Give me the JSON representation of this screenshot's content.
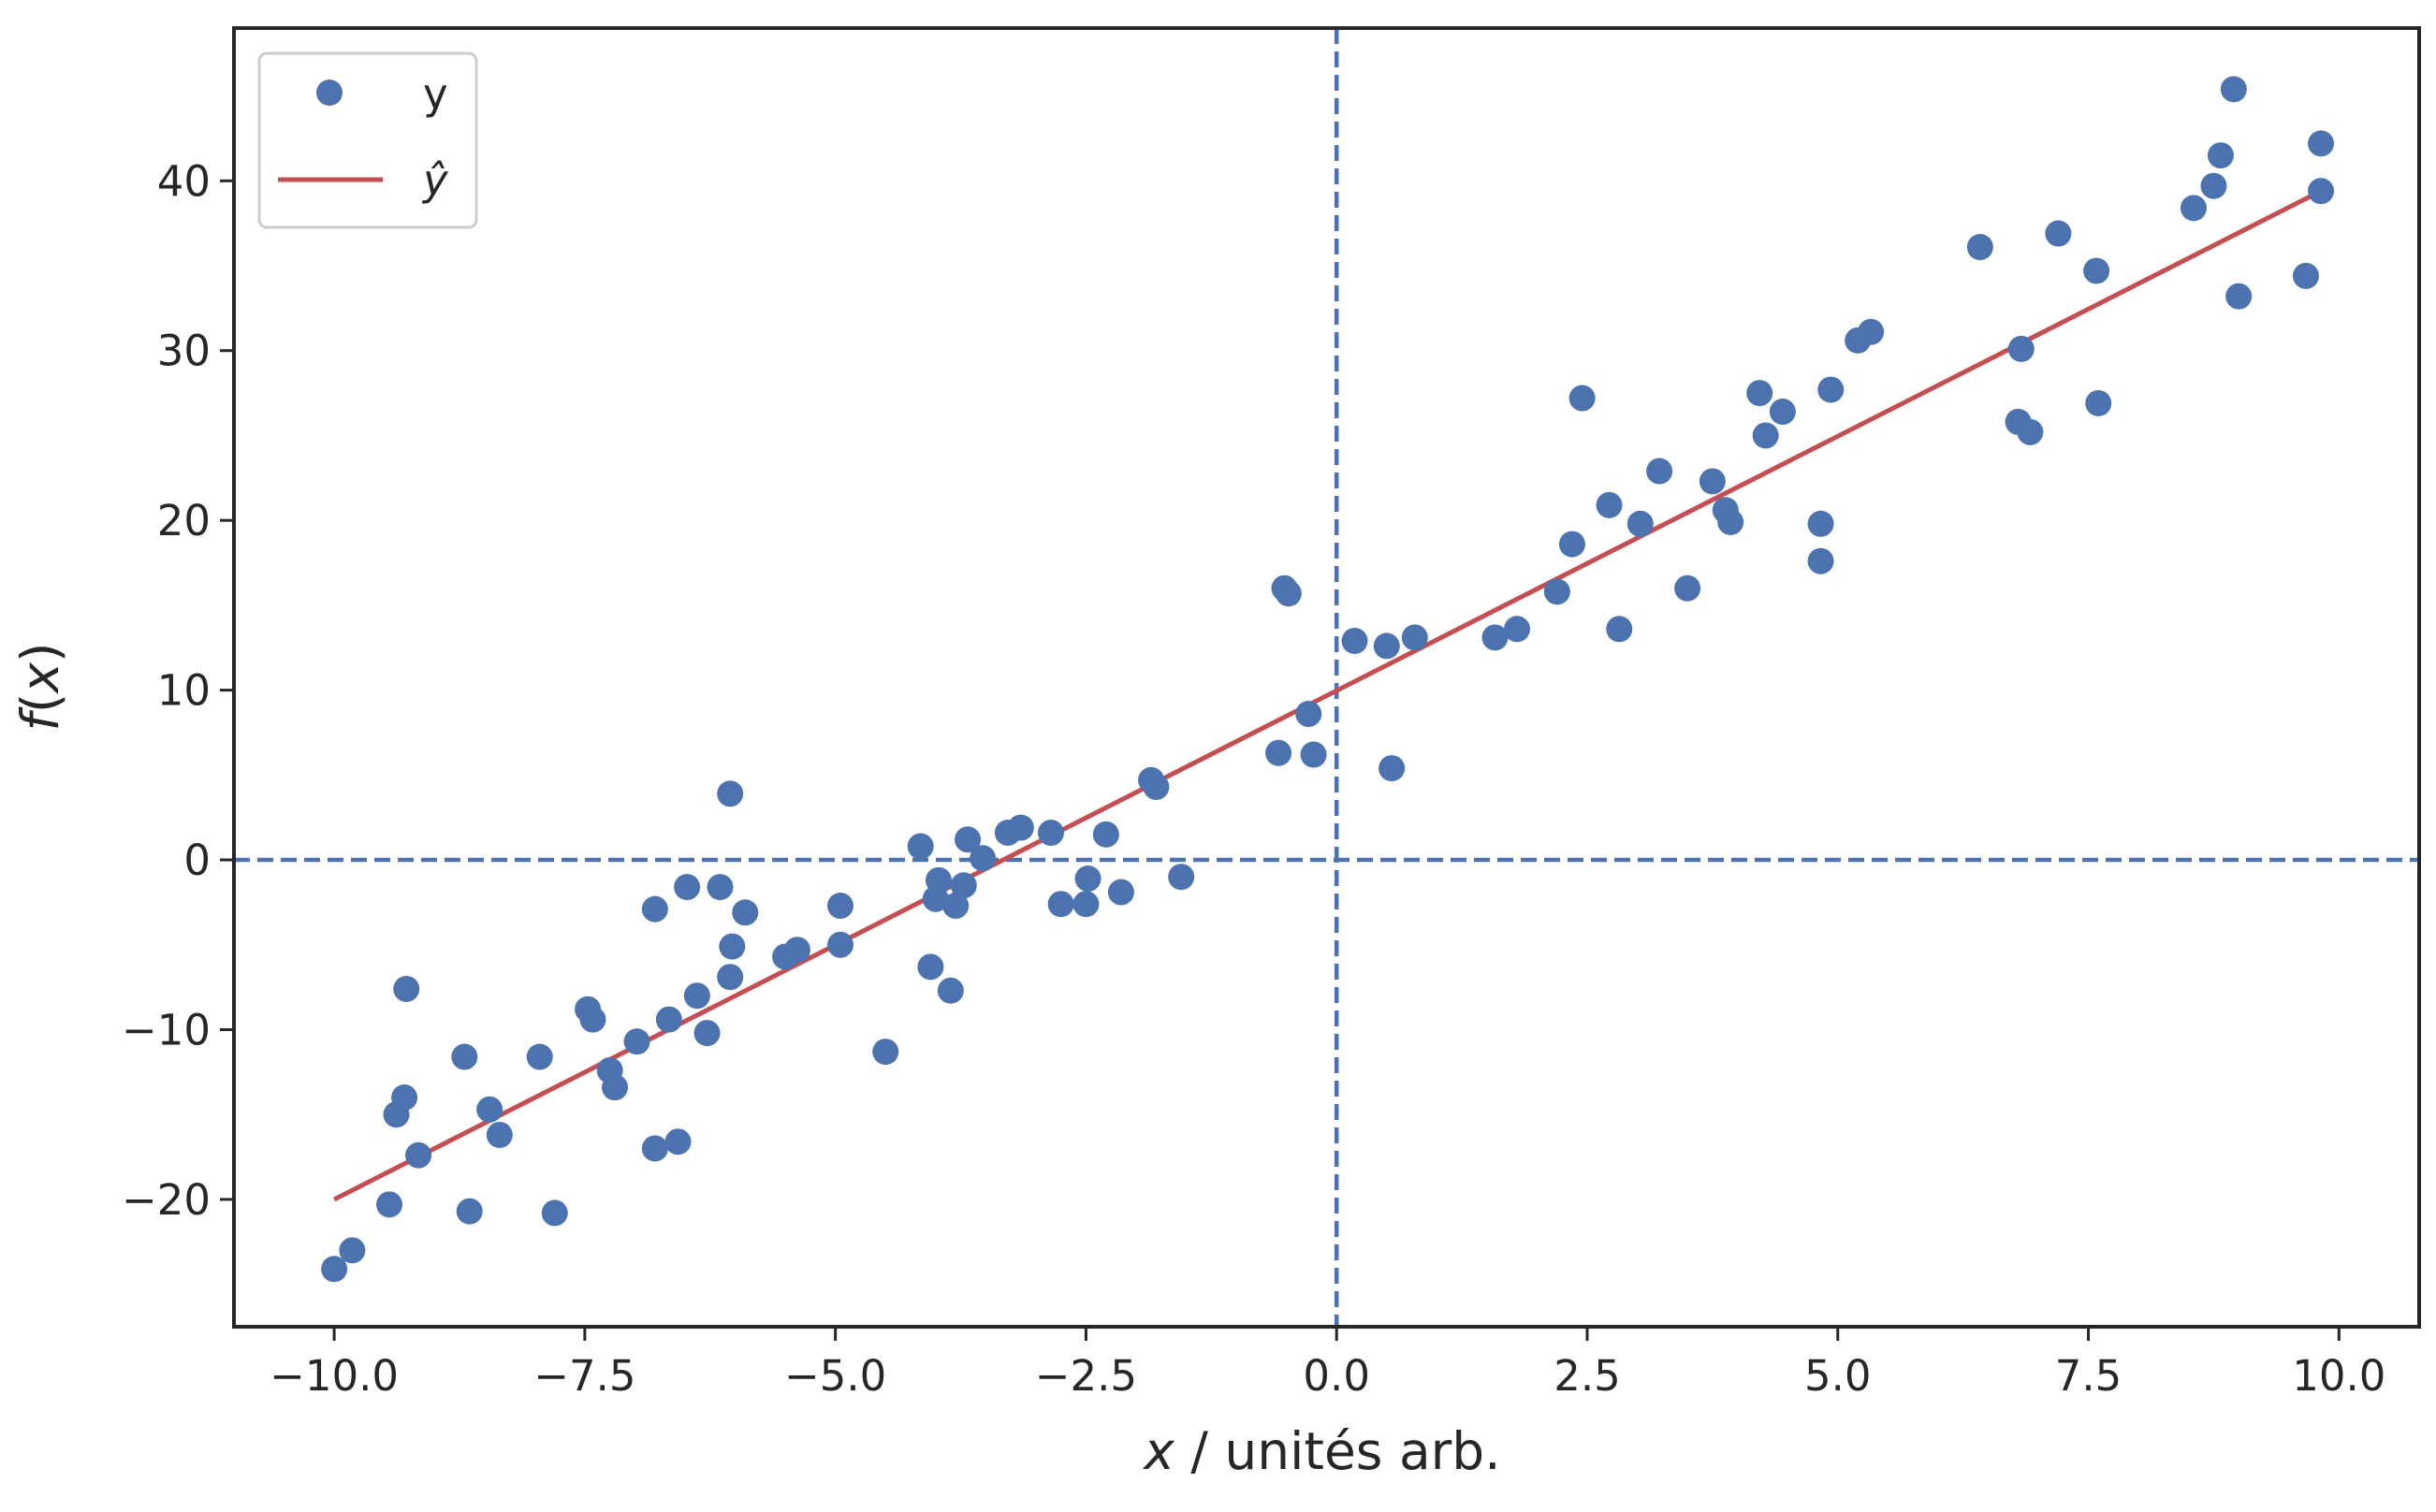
{
  "chart_data": {
    "type": "scatter",
    "xlabel": "x / unités arb.",
    "ylabel": "f(x)",
    "xlim": [
      -11.0,
      10.8
    ],
    "ylim": [
      -27.5,
      49.0
    ],
    "x_ticks": [
      -10.0,
      -7.5,
      -5.0,
      -2.5,
      0.0,
      2.5,
      5.0,
      7.5,
      10.0
    ],
    "x_tick_labels": [
      "−10.0",
      "−7.5",
      "−5.0",
      "−2.5",
      "0.0",
      "2.5",
      "5.0",
      "7.5",
      "10.0"
    ],
    "y_ticks": [
      -20,
      -10,
      0,
      10,
      20,
      30,
      40
    ],
    "y_tick_labels": [
      "−20",
      "−10",
      "0",
      "10",
      "20",
      "30",
      "40"
    ],
    "grid": false,
    "legend": "top-left",
    "reference_lines": {
      "vertical_x": 0,
      "horizontal_y": 0,
      "style": "dashed",
      "color": "#4C72B0"
    },
    "series": [
      {
        "name": "y",
        "kind": "scatter",
        "color": "#4C72B0",
        "points": [
          [
            -10.0,
            -24.1
          ],
          [
            -9.82,
            -23.0
          ],
          [
            -9.45,
            -20.3
          ],
          [
            -9.38,
            -15.0
          ],
          [
            -9.3,
            -14.0
          ],
          [
            -9.28,
            -7.6
          ],
          [
            -9.16,
            -17.4
          ],
          [
            -8.7,
            -11.6
          ],
          [
            -8.65,
            -20.7
          ],
          [
            -8.45,
            -14.7
          ],
          [
            -8.35,
            -16.2
          ],
          [
            -7.95,
            -11.6
          ],
          [
            -7.8,
            -20.8
          ],
          [
            -7.47,
            -8.8
          ],
          [
            -7.42,
            -9.4
          ],
          [
            -7.25,
            -12.4
          ],
          [
            -7.2,
            -13.4
          ],
          [
            -6.98,
            -10.7
          ],
          [
            -6.8,
            -2.9
          ],
          [
            -6.8,
            -17.0
          ],
          [
            -6.66,
            -9.4
          ],
          [
            -6.57,
            -16.6
          ],
          [
            -6.48,
            -1.6
          ],
          [
            -6.38,
            -8.0
          ],
          [
            -6.28,
            -10.2
          ],
          [
            -6.15,
            -1.6
          ],
          [
            -6.05,
            3.9
          ],
          [
            -6.03,
            -5.1
          ],
          [
            -6.05,
            -6.9
          ],
          [
            -5.9,
            -3.1
          ],
          [
            -5.5,
            -5.7
          ],
          [
            -5.38,
            -5.3
          ],
          [
            -4.95,
            -2.7
          ],
          [
            -4.95,
            -5.0
          ],
          [
            -4.5,
            -11.3
          ],
          [
            -4.15,
            0.8
          ],
          [
            -4.05,
            -6.3
          ],
          [
            -4.0,
            -2.3
          ],
          [
            -3.97,
            -1.2
          ],
          [
            -3.85,
            -7.7
          ],
          [
            -3.8,
            -2.7
          ],
          [
            -3.72,
            -1.5
          ],
          [
            -3.68,
            1.2
          ],
          [
            -3.53,
            0.1
          ],
          [
            -3.28,
            1.6
          ],
          [
            -3.15,
            1.9
          ],
          [
            -2.85,
            1.6
          ],
          [
            -2.75,
            -2.6
          ],
          [
            -2.5,
            -2.6
          ],
          [
            -2.48,
            -1.1
          ],
          [
            -2.3,
            1.5
          ],
          [
            -2.15,
            -1.9
          ],
          [
            -1.85,
            4.7
          ],
          [
            -1.8,
            4.3
          ],
          [
            -1.55,
            -1.0
          ],
          [
            -0.58,
            6.3
          ],
          [
            -0.52,
            16.0
          ],
          [
            -0.48,
            15.7
          ],
          [
            -0.28,
            8.6
          ],
          [
            -0.23,
            6.2
          ],
          [
            0.18,
            12.9
          ],
          [
            0.5,
            12.6
          ],
          [
            0.55,
            5.4
          ],
          [
            0.78,
            13.1
          ],
          [
            1.58,
            13.1
          ],
          [
            1.8,
            13.6
          ],
          [
            2.2,
            15.8
          ],
          [
            2.35,
            18.6
          ],
          [
            2.45,
            27.2
          ],
          [
            2.72,
            20.9
          ],
          [
            2.82,
            13.6
          ],
          [
            3.03,
            19.8
          ],
          [
            3.22,
            22.9
          ],
          [
            3.5,
            16.0
          ],
          [
            3.75,
            22.3
          ],
          [
            3.88,
            20.6
          ],
          [
            3.93,
            19.9
          ],
          [
            4.22,
            27.5
          ],
          [
            4.28,
            25.0
          ],
          [
            4.45,
            26.4
          ],
          [
            4.83,
            19.8
          ],
          [
            4.83,
            17.6
          ],
          [
            4.93,
            27.7
          ],
          [
            5.2,
            30.6
          ],
          [
            5.33,
            31.1
          ],
          [
            6.42,
            36.1
          ],
          [
            6.8,
            25.8
          ],
          [
            6.83,
            30.1
          ],
          [
            6.92,
            25.2
          ],
          [
            7.2,
            36.9
          ],
          [
            7.58,
            34.7
          ],
          [
            7.6,
            26.9
          ],
          [
            8.55,
            38.4
          ],
          [
            8.75,
            39.7
          ],
          [
            8.82,
            41.5
          ],
          [
            8.95,
            45.4
          ],
          [
            9.0,
            33.2
          ],
          [
            9.67,
            34.4
          ],
          [
            9.82,
            42.2
          ],
          [
            9.82,
            39.4
          ]
        ]
      },
      {
        "name": "ŷ",
        "kind": "line",
        "color": "#C44E52",
        "points": [
          [
            -10.0,
            -20.0
          ],
          [
            9.82,
            39.4
          ]
        ]
      }
    ]
  }
}
